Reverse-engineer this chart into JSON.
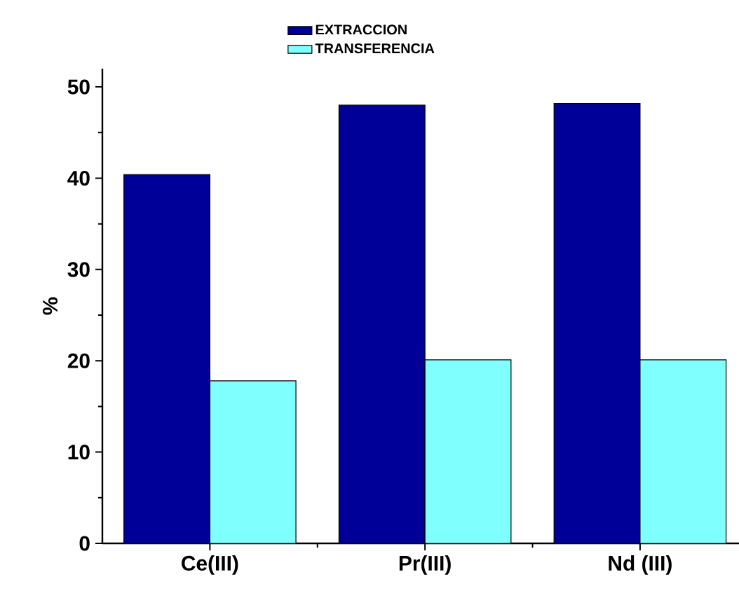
{
  "chart_data": {
    "type": "bar",
    "ylabel": "%",
    "categories": [
      "Ce(III)",
      "Pr(III)",
      "Nd (III)"
    ],
    "series": [
      {
        "name": "EXTRACCION",
        "color": "#000099",
        "values": [
          40.4,
          48.0,
          48.2
        ]
      },
      {
        "name": "TRANSFERENCIA",
        "color": "#80ffff",
        "values": [
          17.8,
          20.1,
          20.1
        ]
      }
    ],
    "ylim": [
      0,
      52
    ],
    "yticks": [
      0,
      10,
      20,
      30,
      40,
      50
    ],
    "grid": false,
    "legend": "top"
  }
}
